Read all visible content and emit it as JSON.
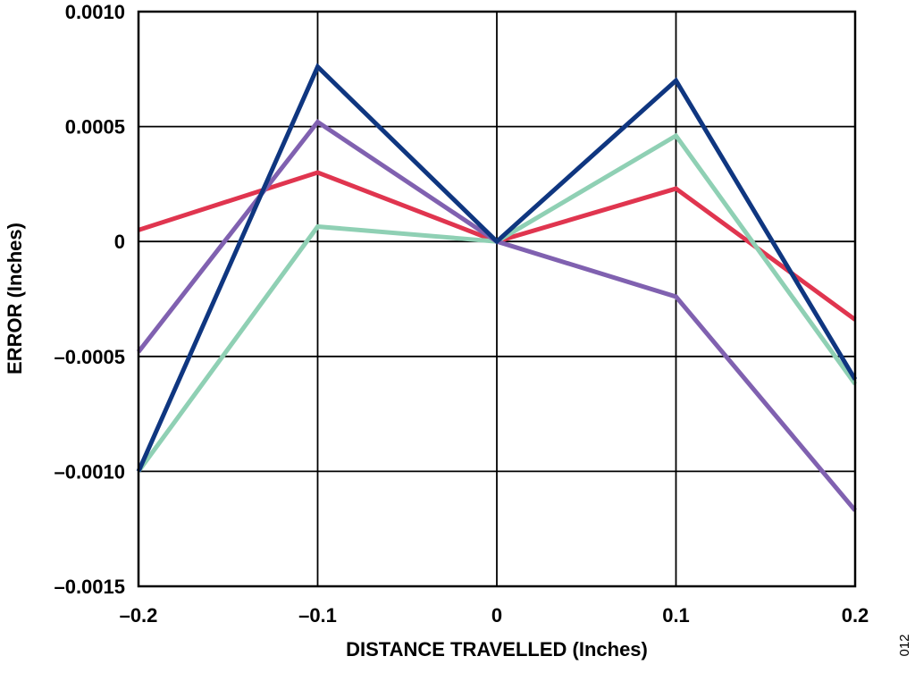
{
  "chart_data": {
    "type": "line",
    "title": "",
    "xlabel": "DISTANCE TRAVELLED (Inches)",
    "ylabel": "ERROR (Inches)",
    "xlim": [
      -0.2,
      0.2
    ],
    "ylim": [
      -0.0015,
      0.001
    ],
    "grid": true,
    "x": [
      -0.2,
      -0.1,
      0,
      0.1,
      0.2
    ],
    "x_tick_labels": [
      "–0.2",
      "–0.1",
      "0",
      "0.1",
      "0.2"
    ],
    "y_ticks": [
      0.001,
      0.0005,
      0,
      -0.0005,
      -0.001,
      -0.0015
    ],
    "y_tick_labels": [
      "0.0010",
      "0.0005",
      "0",
      "–0.0005",
      "–0.0010",
      "–0.0015"
    ],
    "series": [
      {
        "color": "#e0354f",
        "values": [
          5e-05,
          0.0003,
          0,
          0.00023,
          -0.00034
        ]
      },
      {
        "color": "#8fd0b4",
        "values": [
          -0.001,
          6.5e-05,
          0,
          0.00046,
          -0.00062
        ]
      },
      {
        "color": "#8061b0",
        "values": [
          -0.00048,
          0.00052,
          0,
          -0.00024,
          -0.00117
        ]
      },
      {
        "color": "#0f3680",
        "values": [
          -0.001,
          0.00076,
          0,
          0.0007,
          -0.0006
        ]
      }
    ]
  },
  "figure_id": "012"
}
